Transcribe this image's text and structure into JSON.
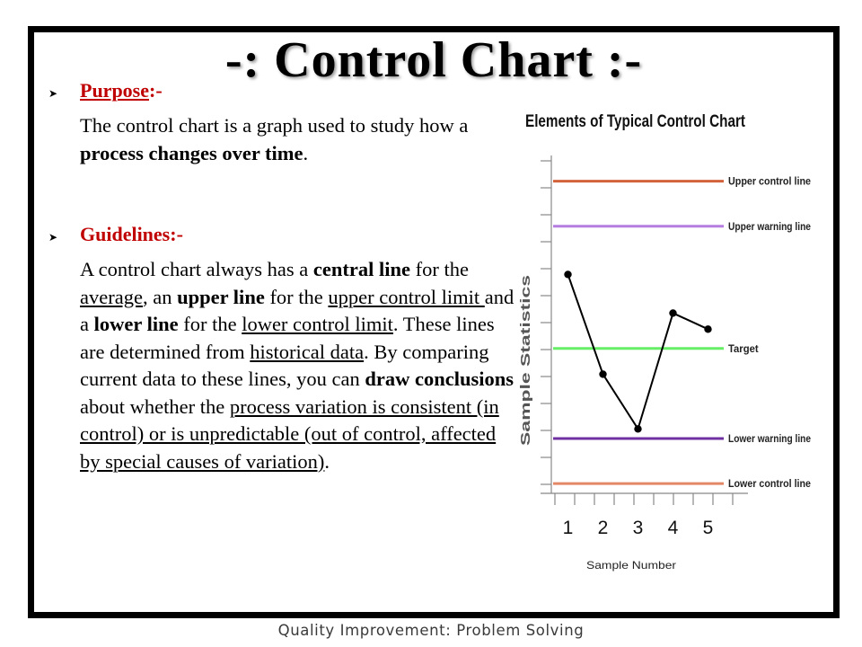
{
  "slide": {
    "title": "-: Control Chart :-",
    "purpose": {
      "heading": "Purpose",
      "suffix": ":-",
      "text_before": "The control chart is a graph used to study how a ",
      "text_bold": "process changes over time",
      "text_after": "."
    },
    "guidelines": {
      "heading": "Guidelines:-",
      "segments": [
        {
          "t": "A control chart always has a ",
          "s": "n"
        },
        {
          "t": "central line",
          "s": "b"
        },
        {
          "t": " for the ",
          "s": "n"
        },
        {
          "t": "average",
          "s": "u"
        },
        {
          "t": ", an ",
          "s": "n"
        },
        {
          "t": "upper line",
          "s": "b"
        },
        {
          "t": " for the ",
          "s": "n"
        },
        {
          "t": "upper control limit ",
          "s": "u"
        },
        {
          "t": "and a ",
          "s": "n"
        },
        {
          "t": "lower line",
          "s": "b"
        },
        {
          "t": " for the ",
          "s": "n"
        },
        {
          "t": "lower control limit",
          "s": "u"
        },
        {
          "t": ". These lines are determined from ",
          "s": "n"
        },
        {
          "t": "historical data",
          "s": "u"
        },
        {
          "t": ". By comparing current data to these lines, you can ",
          "s": "n"
        },
        {
          "t": "draw conclusions",
          "s": "b"
        },
        {
          "t": " about whether the ",
          "s": "n"
        },
        {
          "t": "process variation is consistent (in control) or is unpredictable (out of control, affected by special causes of variation)",
          "s": "u"
        },
        {
          "t": ".",
          "s": "n"
        }
      ]
    }
  },
  "chart_data": {
    "type": "line",
    "title": "Elements of Typical Control Chart",
    "xlabel": "Sample Number",
    "ylabel": "Sample Statistics",
    "x": [
      1,
      2,
      3,
      4,
      5
    ],
    "xlim": [
      0.5,
      5.5
    ],
    "ylim": [
      0,
      10
    ],
    "series": [
      {
        "values": [
          6.3,
          3.2,
          1.5,
          5.1,
          4.6
        ],
        "color": "#000000"
      }
    ],
    "reference_lines": [
      {
        "label": "Upper control line",
        "value": 9.2,
        "color": "#d2623c"
      },
      {
        "label": "Upper warning line",
        "value": 7.8,
        "color": "#b57ee0"
      },
      {
        "label": "Target",
        "value": 4.0,
        "color": "#66ee66"
      },
      {
        "label": "Lower warning line",
        "value": 1.2,
        "color": "#7030a0"
      },
      {
        "label": "Lower control line",
        "value": -0.2,
        "color": "#e38866"
      }
    ],
    "grid": false
  },
  "footer": {
    "text": "Quality Improvement: Problem Solving"
  }
}
